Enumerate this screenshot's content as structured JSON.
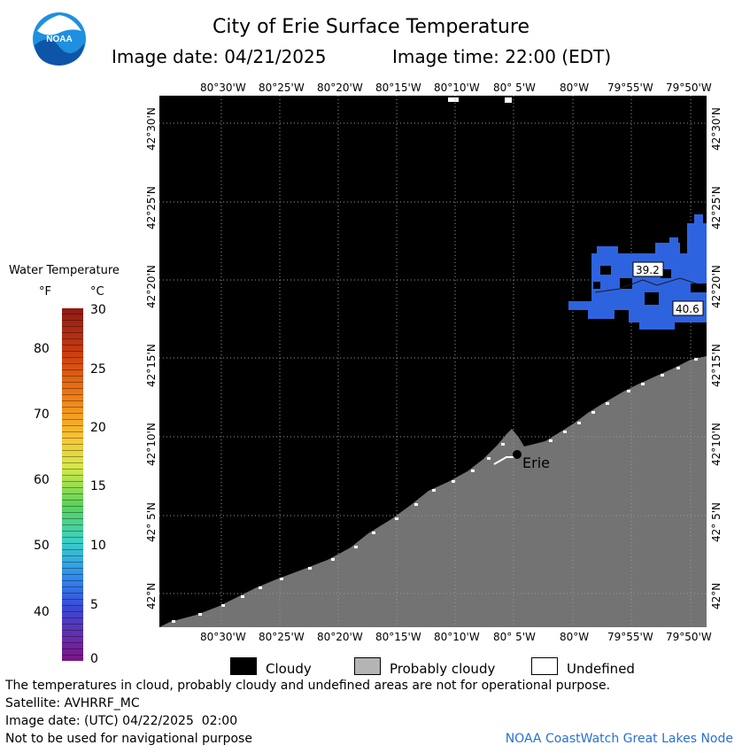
{
  "header": {
    "title": "City of Erie Surface Temperature",
    "date_label": "Image date: 04/21/2025",
    "time_label": "Image time: 22:00 (EDT)"
  },
  "logo": {
    "text": "NOAA"
  },
  "axes": {
    "top_ticks": [
      "80°30'W",
      "80°25'W",
      "80°20'W",
      "80°15'W",
      "80°10'W",
      "80° 5'W",
      "80°W",
      "79°55'W",
      "79°50'W"
    ],
    "bottom_ticks": [
      "80°30'W",
      "80°25'W",
      "80°20'W",
      "80°15'W",
      "80°10'W",
      "80° 5'W",
      "80°W",
      "79°55'W",
      "79°50'W"
    ],
    "left_ticks": [
      "42°30'N",
      "42°25'N",
      "42°20'N",
      "42°15'N",
      "42°10'N",
      "42° 5'N",
      "42°N"
    ],
    "right_ticks": [
      "42°30'N",
      "42°25'N",
      "42°20'N",
      "42°15'N",
      "42°10'N",
      "42° 5'N",
      "42°N"
    ]
  },
  "legend": {
    "title": "Water Temperature",
    "unit_f": "°F",
    "unit_c": "°C",
    "f_labels": [
      "80",
      "70",
      "60",
      "50",
      "40"
    ],
    "c_labels": [
      "30",
      "25",
      "20",
      "15",
      "10",
      "5",
      "0"
    ]
  },
  "map": {
    "city_label": "Erie",
    "readings": [
      "39.2",
      "40.6"
    ],
    "colors": {
      "cloudy": "#000000",
      "probably_cloudy": "#737373",
      "water_cold": "#2e63e0",
      "undefined": "#ffffff"
    }
  },
  "key": {
    "cloudy": "Cloudy",
    "probably_cloudy": "Probably cloudy",
    "undefined": "Undefined"
  },
  "footer": {
    "disclaimer": "The temperatures in cloud, probably cloudy and undefined areas are not for operational purpose.",
    "satellite": "Satellite: AVHRRF_MC",
    "utc_date": "Image date: (UTC) 04/22/2025  02:00",
    "navigation": "Not to be used for navigational purpose",
    "credit": "NOAA CoastWatch Great Lakes Node"
  }
}
